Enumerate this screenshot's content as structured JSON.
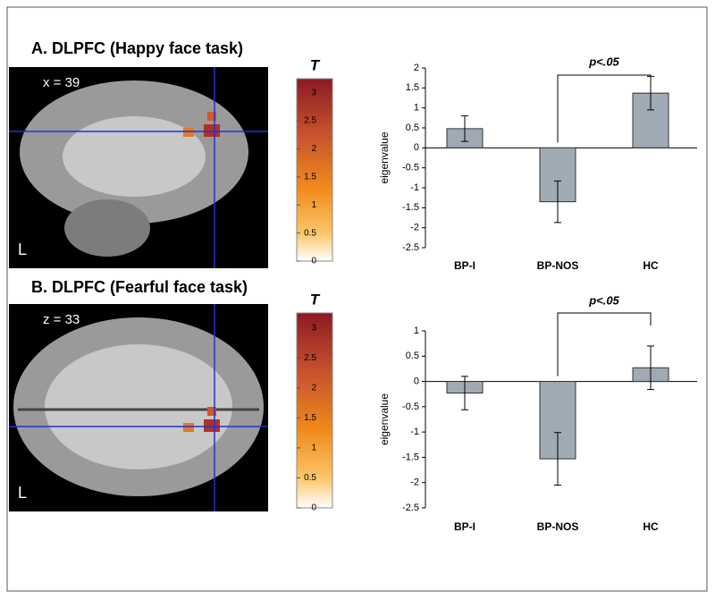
{
  "chart_data": [
    {
      "type": "bar",
      "title": "A. DLPFC (Happy face task)",
      "image_label": "x = 39",
      "orientation_label": "L",
      "colorbar": {
        "label": "T",
        "lim": [
          0,
          3.25
        ],
        "ticks": [
          0,
          0.5,
          1,
          1.5,
          2,
          2.5,
          3
        ]
      },
      "y_label": "eigenvalue",
      "categories": [
        "BP-I",
        "BP-NOS",
        "HC"
      ],
      "values": [
        0.48,
        -1.35,
        1.37
      ],
      "errors": [
        0.32,
        0.52,
        0.42
      ],
      "color": "#a0aab4",
      "ylim": [
        -2.5,
        2
      ],
      "yticks": [
        -2.5,
        -2,
        -1.5,
        -1,
        -0.5,
        0,
        0.5,
        1,
        1.5,
        2
      ],
      "annotation": "p<.05"
    },
    {
      "type": "bar",
      "title": "B. DLPFC (Fearful face task)",
      "image_label": "z = 33",
      "orientation_label": "L",
      "colorbar": {
        "label": "T",
        "lim": [
          0,
          3.25
        ],
        "ticks": [
          0,
          0.5,
          1,
          1.5,
          2,
          2.5,
          3
        ]
      },
      "y_label": "eigenvalue",
      "categories": [
        "BP-I",
        "BP-NOS",
        "HC"
      ],
      "values": [
        -0.23,
        -1.53,
        0.27
      ],
      "errors": [
        0.33,
        0.52,
        0.43
      ],
      "color": "#a0aab4",
      "ylim": [
        -2.5,
        1
      ],
      "yticks": [
        -2.5,
        -2,
        -1.5,
        -1,
        -0.5,
        0,
        0.5,
        1
      ],
      "annotation": "p<.05"
    }
  ]
}
